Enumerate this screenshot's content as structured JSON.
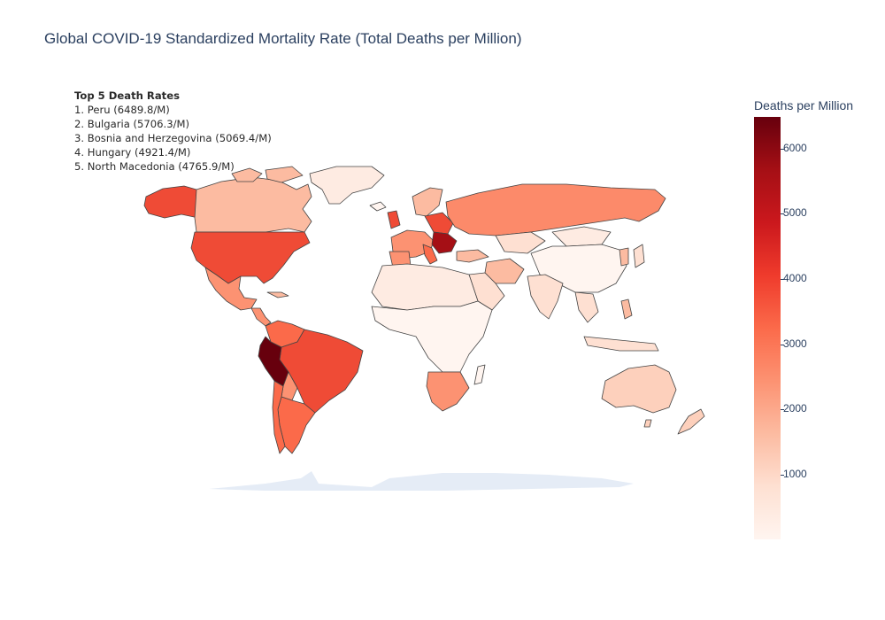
{
  "title": "Global COVID-19 Standardized Mortality Rate (Total Deaths per Million)",
  "annotation": {
    "heading": "Top 5 Death Rates",
    "items": [
      "1. Peru (6489.8/M)",
      "2. Bulgaria (5706.3/M)",
      "3. Bosnia and Herzegovina (5069.4/M)",
      "4. Hungary (4921.4/M)",
      "5. North Macedonia (4765.9/M)"
    ]
  },
  "colorbar": {
    "title": "Deaths per Million",
    "colorscale": "Reds",
    "range": [
      0,
      6489.8
    ],
    "ticks": [
      "1000",
      "2000",
      "3000",
      "4000",
      "5000",
      "6000"
    ]
  },
  "map": {
    "projection": "equirectangular",
    "country_border_color": "#444444",
    "no_data_color": "#e5ecf6",
    "regions": [
      {
        "name": "Peru",
        "value": 6489.8
      },
      {
        "name": "Bulgaria",
        "value": 5706.3
      },
      {
        "name": "Bosnia and Herzegovina",
        "value": 5069.4
      },
      {
        "name": "Hungary",
        "value": 4921.4
      },
      {
        "name": "North Macedonia",
        "value": 4765.9
      }
    ]
  }
}
